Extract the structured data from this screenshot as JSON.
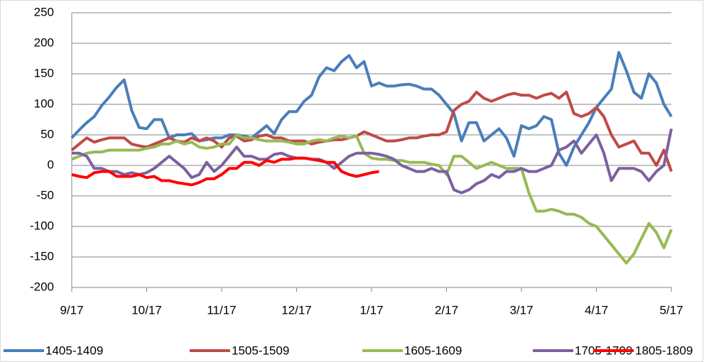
{
  "chart_data": {
    "type": "line",
    "x": [
      0,
      0.1,
      0.2,
      0.3,
      0.4,
      0.5,
      0.6,
      0.7,
      0.8,
      0.9,
      1,
      1.1,
      1.2,
      1.3,
      1.4,
      1.5,
      1.6,
      1.7,
      1.8,
      1.9,
      2,
      2.1,
      2.2,
      2.3,
      2.4,
      2.5,
      2.6,
      2.7,
      2.8,
      2.9,
      3,
      3.1,
      3.2,
      3.3,
      3.4,
      3.5,
      3.6,
      3.7,
      3.8,
      3.9,
      4,
      4.1,
      4.2,
      4.3,
      4.4,
      4.5,
      4.6,
      4.7,
      4.8,
      4.9,
      5,
      5.1,
      5.2,
      5.3,
      5.4,
      5.5,
      5.6,
      5.7,
      5.8,
      5.9,
      6,
      6.1,
      6.2,
      6.3,
      6.4,
      6.5,
      6.6,
      6.7,
      6.8,
      6.9,
      7,
      7.1,
      7.2,
      7.3,
      7.4,
      7.5,
      7.6,
      7.7,
      7.8,
      7.9,
      8
    ],
    "xlim": [
      0,
      8
    ],
    "xticks": [
      {
        "value": 0,
        "label": "9/17"
      },
      {
        "value": 1,
        "label": "10/17"
      },
      {
        "value": 2,
        "label": "11/17"
      },
      {
        "value": 3,
        "label": "12/17"
      },
      {
        "value": 4,
        "label": "1/17"
      },
      {
        "value": 5,
        "label": "2/17"
      },
      {
        "value": 6,
        "label": "3/17"
      },
      {
        "value": 7,
        "label": "4/17"
      },
      {
        "value": 8,
        "label": "5/17"
      }
    ],
    "ylim": [
      -200,
      250
    ],
    "yticks": [
      -200,
      -150,
      -100,
      -50,
      0,
      50,
      100,
      150,
      200,
      250
    ],
    "grid": true,
    "legend": "bottom",
    "series": [
      {
        "name": "1405-1409",
        "color": "#4a7ebb",
        "values": [
          45,
          58,
          70,
          80,
          98,
          112,
          128,
          140,
          90,
          62,
          60,
          75,
          75,
          45,
          50,
          50,
          52,
          40,
          42,
          45,
          45,
          50,
          50,
          48,
          45,
          55,
          65,
          52,
          75,
          88,
          88,
          105,
          115,
          145,
          160,
          155,
          170,
          180,
          160,
          170,
          130,
          135,
          130,
          130,
          132,
          133,
          130,
          125,
          125,
          115,
          100,
          85,
          40,
          70,
          70,
          40,
          50,
          60,
          45,
          15,
          65,
          60,
          65,
          80,
          75,
          20,
          0,
          30,
          50,
          70,
          95,
          110,
          125,
          185,
          155,
          120,
          110,
          150,
          135,
          100,
          80
        ]
      },
      {
        "name": "1505-1509",
        "color": "#be4b48",
        "values": [
          25,
          35,
          45,
          38,
          42,
          45,
          45,
          45,
          35,
          32,
          30,
          35,
          40,
          45,
          40,
          38,
          45,
          40,
          45,
          40,
          30,
          45,
          48,
          40,
          42,
          48,
          50,
          45,
          45,
          40,
          40,
          40,
          35,
          38,
          40,
          42,
          42,
          45,
          48,
          55,
          50,
          45,
          40,
          40,
          42,
          45,
          45,
          48,
          50,
          50,
          55,
          90,
          100,
          105,
          120,
          110,
          105,
          110,
          115,
          118,
          115,
          115,
          110,
          115,
          118,
          110,
          120,
          85,
          80,
          85,
          95,
          80,
          50,
          30,
          35,
          40,
          20,
          20,
          0,
          25,
          -10
        ]
      },
      {
        "name": "1605-1609",
        "color": "#98b954",
        "values": [
          10,
          15,
          20,
          22,
          22,
          25,
          25,
          25,
          25,
          25,
          28,
          30,
          35,
          35,
          40,
          35,
          38,
          30,
          28,
          30,
          35,
          35,
          50,
          45,
          45,
          42,
          40,
          40,
          40,
          38,
          35,
          35,
          40,
          42,
          40,
          45,
          48,
          45,
          48,
          20,
          12,
          10,
          10,
          8,
          8,
          5,
          5,
          5,
          2,
          0,
          -15,
          15,
          15,
          5,
          -5,
          0,
          5,
          0,
          -5,
          -5,
          -5,
          -45,
          -75,
          -75,
          -72,
          -75,
          -80,
          -80,
          -85,
          -95,
          -100,
          -115,
          -130,
          -145,
          -160,
          -145,
          -120,
          -95,
          -110,
          -135,
          -105
        ]
      },
      {
        "name": "1705-1709",
        "color": "#7d60a0",
        "values": [
          20,
          20,
          15,
          -5,
          -5,
          -10,
          -10,
          -15,
          -12,
          -15,
          -12,
          -5,
          5,
          15,
          5,
          -5,
          -20,
          -15,
          5,
          -10,
          0,
          15,
          30,
          15,
          15,
          10,
          10,
          18,
          20,
          15,
          12,
          12,
          10,
          10,
          5,
          -5,
          5,
          15,
          20,
          20,
          20,
          18,
          15,
          10,
          0,
          -5,
          -10,
          -10,
          -5,
          -10,
          -10,
          -40,
          -45,
          -40,
          -30,
          -25,
          -15,
          -20,
          -10,
          -10,
          -5,
          -10,
          -10,
          -5,
          0,
          25,
          30,
          40,
          20,
          35,
          50,
          20,
          -25,
          -5,
          -5,
          -5,
          -10,
          -25,
          -10,
          0,
          60
        ]
      },
      {
        "name": "1805-1809",
        "color": "#ff0000",
        "values": [
          -15,
          -18,
          -20,
          -12,
          -10,
          -10,
          -18,
          -18,
          -18,
          -15,
          -20,
          -18,
          -25,
          -25,
          -28,
          -30,
          -32,
          -28,
          -22,
          -22,
          -15,
          -5,
          -5,
          5,
          5,
          0,
          8,
          5,
          10,
          10,
          12,
          12,
          10,
          8,
          5,
          5,
          -10,
          -15,
          -18,
          -15,
          -12,
          -10,
          null,
          null,
          null,
          null,
          null,
          null,
          null,
          null,
          null,
          null,
          null,
          null,
          null,
          null,
          null,
          null,
          null,
          null,
          null,
          null,
          null,
          null,
          null,
          null,
          null,
          null,
          null,
          null,
          null,
          null,
          null,
          null,
          null,
          null,
          null,
          null,
          null,
          null,
          null
        ]
      }
    ]
  }
}
